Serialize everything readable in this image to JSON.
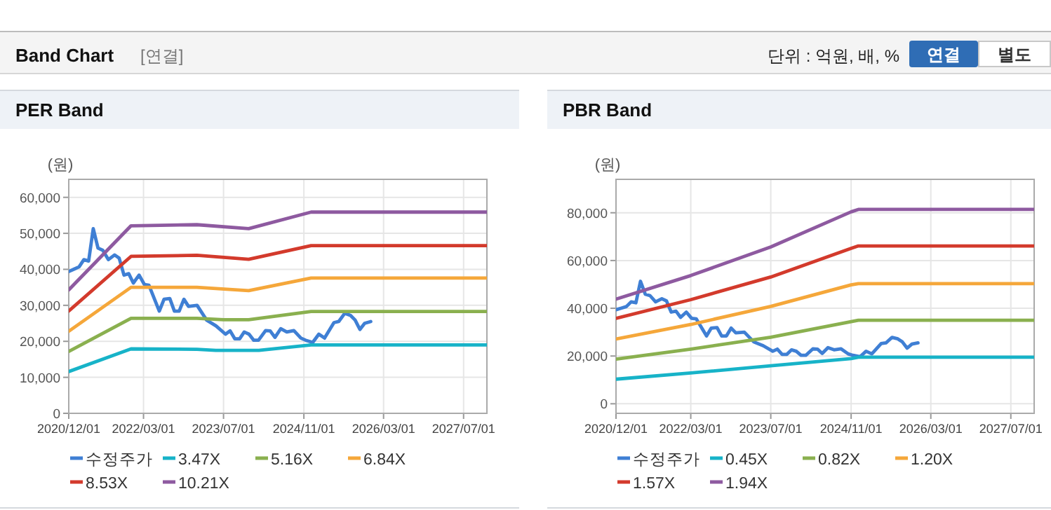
{
  "chart_data": [
    {
      "type": "other",
      "title": "Band Chart",
      "subtitle": "[연결]",
      "annotations": [
        "단위 : 억원, 배, %",
        "연결",
        "별도"
      ]
    },
    {
      "type": "line",
      "title": "PER Band",
      "ylabel": "(원)",
      "grid": true,
      "legend": "bottom",
      "xlim": [
        "2020-12-01",
        "2027-11-20"
      ],
      "xticks": [
        {
          "value": "2020-12-01",
          "label": "2020/12/01"
        },
        {
          "value": "2022-03-01",
          "label": "2022/03/01"
        },
        {
          "value": "2023-07-01",
          "label": "2023/07/01"
        },
        {
          "value": "2024-11-01",
          "label": "2024/11/01"
        },
        {
          "value": "2026-03-01",
          "label": "2026/03/01"
        },
        {
          "value": "2027-07-01",
          "label": "2027/07/01"
        }
      ],
      "ylim": [
        0,
        65000
      ],
      "yticks": [
        0,
        {
          "value": 10000,
          "label": "10,000"
        },
        {
          "value": 20000,
          "label": "20,000"
        },
        {
          "value": 30000,
          "label": "30,000"
        },
        {
          "value": 40000,
          "label": "40,000"
        },
        {
          "value": 50000,
          "label": "50,000"
        },
        {
          "value": 60000,
          "label": "60,000"
        }
      ],
      "series": [
        {
          "name": "수정주가",
          "color": "#3f7fd4",
          "x": [
            "2020-12-01",
            "2021-01-04",
            "2021-02-02",
            "2021-03-03",
            "2021-04-01",
            "2021-04-29",
            "2021-05-28",
            "2021-06-26",
            "2021-07-30",
            "2021-09-06",
            "2021-10-04",
            "2021-11-02",
            "2021-12-01",
            "2021-12-29",
            "2022-02-02",
            "2022-03-06",
            "2022-04-03",
            "2022-06-05",
            "2022-07-04",
            "2022-08-08",
            "2022-09-05",
            "2022-10-04",
            "2022-11-02",
            "2022-11-30",
            "2023-01-21",
            "2023-03-20",
            "2023-05-16",
            "2023-07-13",
            "2023-08-10",
            "2023-09-08",
            "2023-10-07",
            "2023-11-04",
            "2023-12-03",
            "2024-01-01",
            "2024-01-30",
            "2024-03-13",
            "2024-04-10",
            "2024-05-09",
            "2024-06-13",
            "2024-07-20",
            "2024-09-01",
            "2024-10-14",
            "2024-11-12",
            "2024-12-25",
            "2025-01-31",
            "2025-03-07",
            "2025-05-03",
            "2025-06-01",
            "2025-07-08",
            "2025-08-12",
            "2025-09-09",
            "2025-10-08",
            "2025-11-06",
            "2025-12-13"
          ],
          "values": [
            39400,
            40100,
            40700,
            42700,
            42300,
            51300,
            45900,
            45300,
            42700,
            44000,
            43100,
            38400,
            38800,
            36200,
            38400,
            35800,
            35600,
            28400,
            31700,
            31900,
            28400,
            28400,
            31700,
            29700,
            30000,
            25900,
            24300,
            22000,
            22900,
            20700,
            20700,
            22600,
            22000,
            20300,
            20300,
            23000,
            22900,
            21100,
            23500,
            22600,
            23000,
            20900,
            20300,
            19700,
            22000,
            20900,
            25200,
            25500,
            27800,
            27200,
            25900,
            23300,
            25000,
            25500
          ]
        },
        {
          "name": "3.47X",
          "color": "#17b3c8",
          "x": [
            "2020-12-01",
            "2021-12-15",
            "2023-01-20",
            "2023-05-15",
            "2024-02-01",
            "2024-12-15",
            "2027-11-20"
          ],
          "values": [
            11600,
            17900,
            17800,
            17500,
            17500,
            19000,
            19000
          ]
        },
        {
          "name": "5.16X",
          "color": "#8ab04f",
          "x": [
            "2020-12-01",
            "2021-12-15",
            "2023-01-20",
            "2023-07-01",
            "2023-12-01",
            "2024-12-15",
            "2027-11-20"
          ],
          "values": [
            17200,
            26400,
            26400,
            26000,
            26000,
            28300,
            28300
          ]
        },
        {
          "name": "6.84X",
          "color": "#f5a73a",
          "x": [
            "2020-12-01",
            "2021-12-15",
            "2023-01-20",
            "2023-12-01",
            "2024-12-15",
            "2027-11-20"
          ],
          "values": [
            22800,
            35000,
            35000,
            34100,
            37600,
            37600
          ]
        },
        {
          "name": "8.53X",
          "color": "#d33a2c",
          "x": [
            "2020-12-01",
            "2021-12-15",
            "2023-01-20",
            "2023-12-01",
            "2024-12-15",
            "2027-11-20"
          ],
          "values": [
            28400,
            43600,
            43900,
            42800,
            46600,
            46600
          ]
        },
        {
          "name": "10.21X",
          "color": "#8e5aa0",
          "x": [
            "2020-12-01",
            "2021-12-15",
            "2023-01-20",
            "2023-12-01",
            "2024-12-15",
            "2027-11-20"
          ],
          "values": [
            34300,
            52100,
            52400,
            51300,
            55900,
            55900
          ]
        }
      ]
    },
    {
      "type": "line",
      "title": "PBR Band",
      "ylabel": "(원)",
      "grid": true,
      "legend": "bottom",
      "xlim": [
        "2020-12-01",
        "2027-11-20"
      ],
      "xticks": [
        {
          "value": "2020-12-01",
          "label": "2020/12/01"
        },
        {
          "value": "2022-03-01",
          "label": "2022/03/01"
        },
        {
          "value": "2023-07-01",
          "label": "2023/07/01"
        },
        {
          "value": "2024-11-01",
          "label": "2024/11/01"
        },
        {
          "value": "2026-03-01",
          "label": "2026/03/01"
        },
        {
          "value": "2027-07-01",
          "label": "2027/07/01"
        }
      ],
      "ylim": [
        -4000,
        94000
      ],
      "yticks": [
        0,
        {
          "value": 20000,
          "label": "20,000"
        },
        {
          "value": 40000,
          "label": "40,000"
        },
        {
          "value": 60000,
          "label": "60,000"
        },
        {
          "value": 80000,
          "label": "80,000"
        }
      ],
      "series": [
        {
          "name": "수정주가",
          "color": "#3f7fd4",
          "x": [
            "2020-12-01",
            "2021-01-04",
            "2021-02-02",
            "2021-03-03",
            "2021-04-01",
            "2021-04-29",
            "2021-05-28",
            "2021-06-26",
            "2021-07-30",
            "2021-09-06",
            "2021-10-04",
            "2021-11-02",
            "2021-12-01",
            "2021-12-29",
            "2022-02-02",
            "2022-03-06",
            "2022-04-03",
            "2022-06-05",
            "2022-07-04",
            "2022-08-08",
            "2022-09-05",
            "2022-10-04",
            "2022-11-02",
            "2022-11-30",
            "2023-01-21",
            "2023-03-20",
            "2023-05-16",
            "2023-07-13",
            "2023-08-10",
            "2023-09-08",
            "2023-10-07",
            "2023-11-04",
            "2023-12-03",
            "2024-01-01",
            "2024-01-30",
            "2024-03-13",
            "2024-04-10",
            "2024-05-09",
            "2024-06-13",
            "2024-07-20",
            "2024-09-01",
            "2024-10-14",
            "2024-11-12",
            "2024-12-25",
            "2025-01-31",
            "2025-03-07",
            "2025-05-03",
            "2025-06-01",
            "2025-07-08",
            "2025-08-12",
            "2025-09-09",
            "2025-10-08",
            "2025-11-06",
            "2025-12-13"
          ],
          "values": [
            39400,
            40100,
            40700,
            42700,
            42300,
            51300,
            45900,
            45300,
            42700,
            44000,
            43100,
            38400,
            38800,
            36200,
            38400,
            35800,
            35600,
            28400,
            31700,
            31900,
            28400,
            28400,
            31700,
            29700,
            30000,
            25900,
            24300,
            22000,
            22900,
            20700,
            20700,
            22600,
            22000,
            20300,
            20300,
            23000,
            22900,
            21100,
            23500,
            22600,
            23000,
            20900,
            20300,
            19700,
            22000,
            20900,
            25200,
            25500,
            27800,
            27200,
            25900,
            23300,
            25000,
            25500
          ]
        },
        {
          "name": "0.45X",
          "color": "#17b3c8",
          "x": [
            "2020-12-01",
            "2022-03-01",
            "2023-07-01",
            "2024-11-01",
            "2024-12-15",
            "2027-11-20"
          ],
          "values": [
            10300,
            12900,
            15900,
            18900,
            19500,
            19500
          ]
        },
        {
          "name": "0.82X",
          "color": "#8ab04f",
          "x": [
            "2020-12-01",
            "2022-03-01",
            "2023-07-01",
            "2024-11-01",
            "2024-12-15",
            "2027-11-20"
          ],
          "values": [
            18700,
            22900,
            27900,
            34400,
            35000,
            35000
          ]
        },
        {
          "name": "1.20X",
          "color": "#f5a73a",
          "x": [
            "2020-12-01",
            "2022-03-01",
            "2023-07-01",
            "2024-11-01",
            "2024-12-15",
            "2027-11-20"
          ],
          "values": [
            27100,
            33200,
            40800,
            49800,
            50300,
            50300
          ]
        },
        {
          "name": "1.57X",
          "color": "#d33a2c",
          "x": [
            "2020-12-01",
            "2022-03-01",
            "2023-07-01",
            "2024-11-01",
            "2024-12-15",
            "2027-11-20"
          ],
          "values": [
            35800,
            43600,
            53100,
            65100,
            66100,
            66100
          ]
        },
        {
          "name": "1.94X",
          "color": "#8e5aa0",
          "x": [
            "2020-12-01",
            "2022-03-01",
            "2023-07-01",
            "2024-11-01",
            "2024-12-15",
            "2027-11-20"
          ],
          "values": [
            43800,
            53700,
            65700,
            80400,
            81400,
            81400
          ]
        }
      ]
    }
  ]
}
